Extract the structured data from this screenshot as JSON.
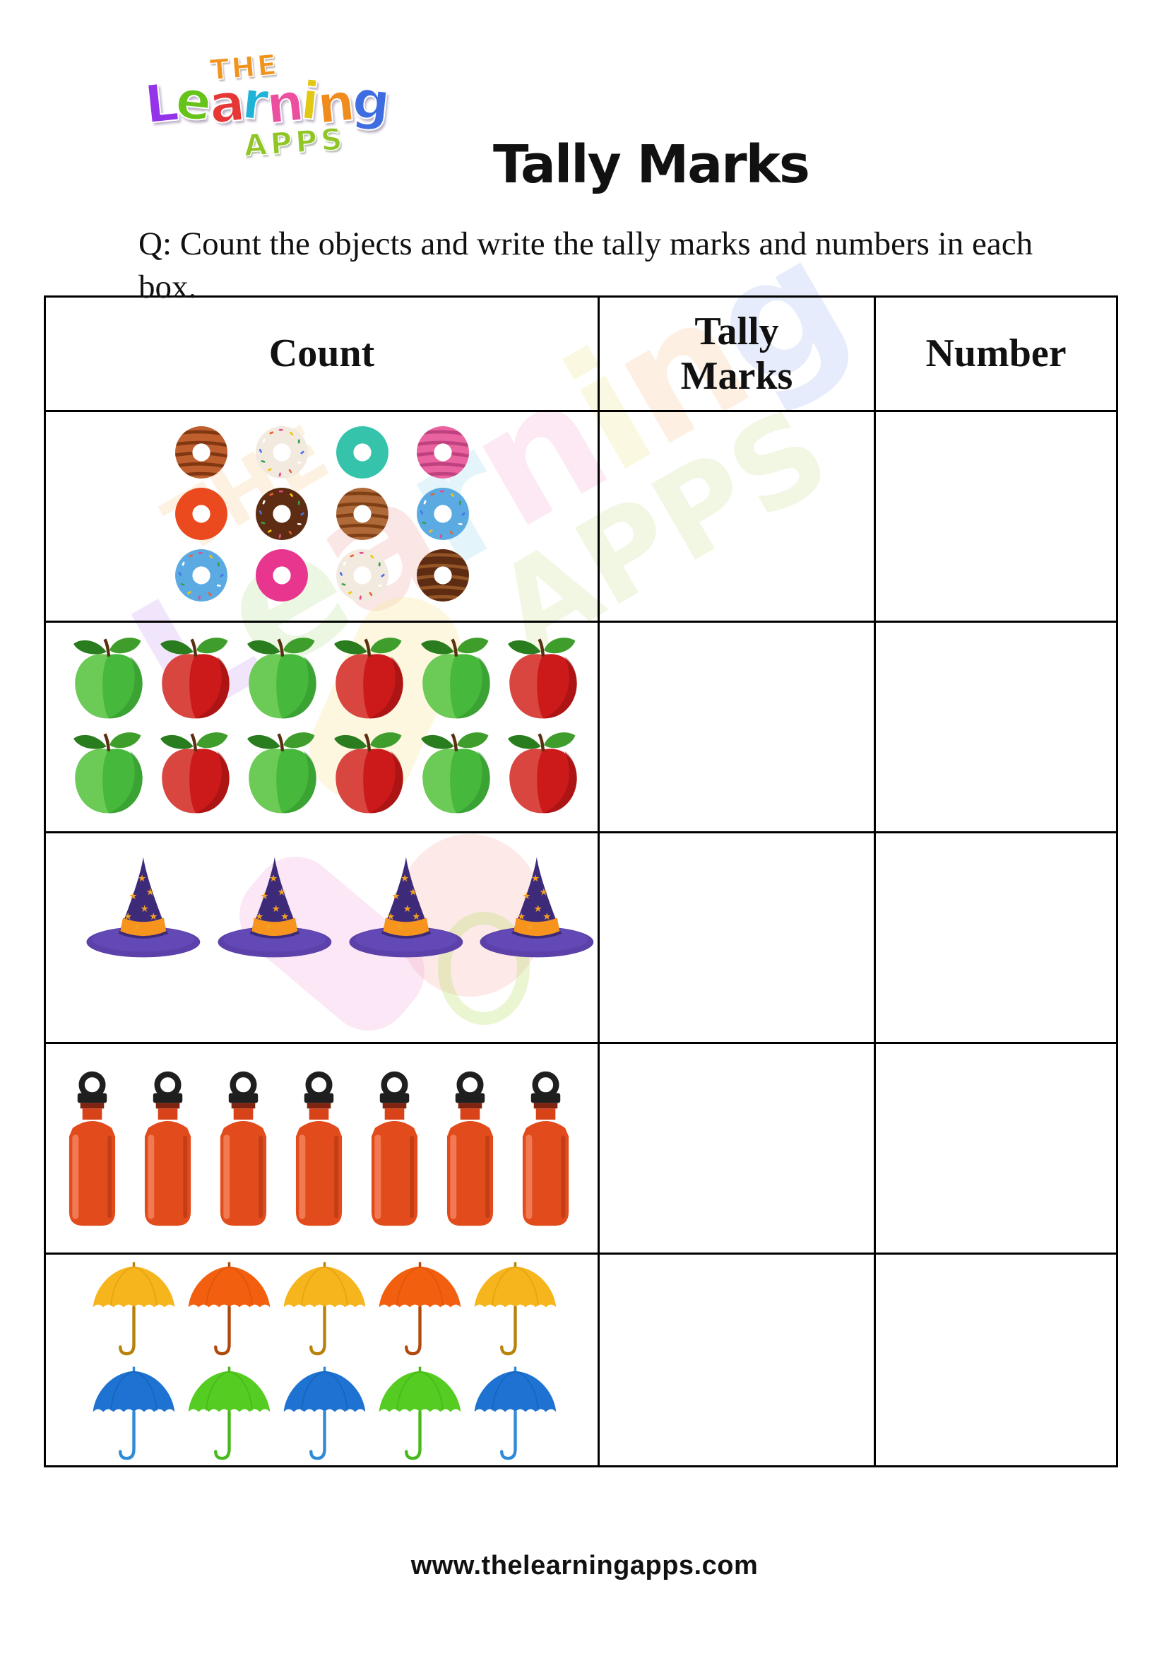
{
  "header": {
    "logo": {
      "the": "THE",
      "the_color": "#f0941e",
      "learning_letters": [
        {
          "ch": "L",
          "color": "#9333ea"
        },
        {
          "ch": "e",
          "color": "#65c31a"
        },
        {
          "ch": "a",
          "color": "#e63737"
        },
        {
          "ch": "r",
          "color": "#1fb3d8"
        },
        {
          "ch": "n",
          "color": "#ed4fa0"
        },
        {
          "ch": "i",
          "color": "#e0c814"
        },
        {
          "ch": "n",
          "color": "#f08c1e"
        },
        {
          "ch": "g",
          "color": "#3d6de0"
        }
      ],
      "apps": "APPS",
      "apps_color": "#8fc525"
    },
    "title": "Tally Marks"
  },
  "question": "Q: Count the objects and write the tally marks and numbers in each box.",
  "table": {
    "headers": [
      "Count",
      "Tally\nMarks",
      "Number"
    ],
    "rows": [
      {
        "object": "donut",
        "count": 12,
        "per_row": 4,
        "items": [
          {
            "style": "striped",
            "base": "#bf5f2e",
            "accent": "#7a3410"
          },
          {
            "style": "sprinkled",
            "base": "#f2e9df",
            "accent": "#caa04a"
          },
          {
            "style": "plain",
            "base": "#35c4ab",
            "accent": "#2aa18c"
          },
          {
            "style": "striped",
            "base": "#e8639f",
            "accent": "#bb3d7c"
          },
          {
            "style": "plain",
            "base": "#ea4a1e",
            "accent": "#c23512"
          },
          {
            "style": "sprinkled",
            "base": "#5e2c12",
            "accent": "#8a4a20"
          },
          {
            "style": "striped",
            "base": "#b06a3a",
            "accent": "#7a3c12"
          },
          {
            "style": "sprinkled",
            "base": "#5caae2",
            "accent": "#2f7ab8"
          },
          {
            "style": "sprinkled",
            "base": "#5caae2",
            "accent": "#2f7ab8"
          },
          {
            "style": "plain",
            "base": "#e8368e",
            "accent": "#c01468"
          },
          {
            "style": "sprinkled",
            "base": "#f2e9df",
            "accent": "#caa04a"
          },
          {
            "style": "striped",
            "base": "#5e2c12",
            "accent": "#9a5a28"
          }
        ]
      },
      {
        "object": "apple",
        "count": 12,
        "per_row": 6,
        "items": [
          {
            "color": "green"
          },
          {
            "color": "red"
          },
          {
            "color": "green"
          },
          {
            "color": "red"
          },
          {
            "color": "green"
          },
          {
            "color": "red"
          },
          {
            "color": "green"
          },
          {
            "color": "red"
          },
          {
            "color": "green"
          },
          {
            "color": "red"
          },
          {
            "color": "green"
          },
          {
            "color": "red"
          }
        ]
      },
      {
        "object": "witch-hat",
        "count": 4,
        "per_row": 4,
        "items": [
          {},
          {},
          {},
          {}
        ]
      },
      {
        "object": "bottle",
        "count": 7,
        "per_row": 7,
        "items": [
          {},
          {},
          {},
          {},
          {},
          {},
          {}
        ]
      },
      {
        "object": "umbrella",
        "count": 10,
        "per_row": 5,
        "items": [
          {
            "color": "yellow"
          },
          {
            "color": "orange"
          },
          {
            "color": "yellow"
          },
          {
            "color": "orange"
          },
          {
            "color": "yellow"
          },
          {
            "color": "blue"
          },
          {
            "color": "green"
          },
          {
            "color": "blue"
          },
          {
            "color": "green"
          },
          {
            "color": "blue"
          }
        ]
      }
    ]
  },
  "footer": {
    "url": "www.thelearningapps.com"
  },
  "palette": {
    "apple": {
      "green": {
        "body": "#46b83c",
        "light": "#b4ec86",
        "dark": "#2f8c2c"
      },
      "red": {
        "body": "#cc1a1a",
        "light": "#f29a8a",
        "dark": "#8e0d0d"
      }
    },
    "umbrella": {
      "yellow": {
        "canopy": "#f6b51c",
        "dark": "#d89408",
        "handle": "#b8820a"
      },
      "orange": {
        "canopy": "#f2600f",
        "dark": "#cc4a08",
        "handle": "#b04a0c"
      },
      "blue": {
        "canopy": "#1d72d2",
        "dark": "#1259a8",
        "handle": "#2f8ad8"
      },
      "green": {
        "canopy": "#55cc22",
        "dark": "#3fa514",
        "handle": "#48b81c"
      }
    },
    "hat": {
      "cone": "#3d2b7a",
      "brim": "#5b41a9",
      "band": "#f6941e",
      "star": "#f2a024"
    },
    "bottle": {
      "body": "#e24b1c",
      "cap": "#1f1f1f",
      "collar": "#7e2410",
      "neck": "#d8431a",
      "highlight": "#f4835c",
      "shade": "#a83210"
    },
    "donut_sprinkles": [
      "#e84a8a",
      "#f2c40e",
      "#3a9e4c",
      "#4a72e8",
      "#ffffff",
      "#e8622c"
    ],
    "table_border": "#000000"
  }
}
